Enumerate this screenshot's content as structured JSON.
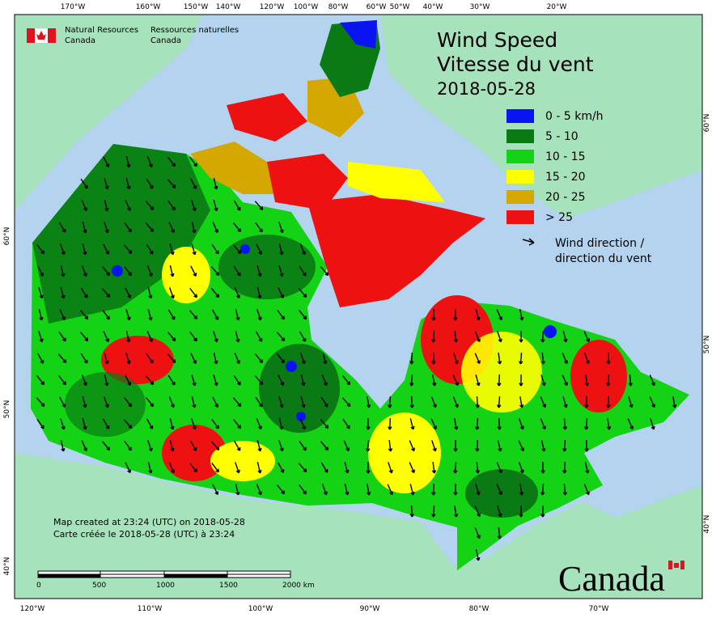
{
  "header": {
    "agency_en": [
      "Natural Resources",
      "Canada"
    ],
    "agency_fr": [
      "Ressources naturelles",
      "Canada"
    ]
  },
  "title": [
    "Wind Speed",
    "Vitesse du vent"
  ],
  "date": "2018-05-28",
  "legend": {
    "items": [
      {
        "label": "0 - 5 km/h",
        "color": "#0a14f0"
      },
      {
        "label": "5 - 10",
        "color": "#0a7a14"
      },
      {
        "label": "10 - 15",
        "color": "#14d214"
      },
      {
        "label": "15 - 20",
        "color": "#ffff00"
      },
      {
        "label": "20 - 25",
        "color": "#d4a800"
      },
      {
        "label": "> 25",
        "color": "#ee1111"
      }
    ],
    "direction": [
      "Wind direction /",
      "direction du vent"
    ]
  },
  "graticule": {
    "top": [
      "170°W",
      "160°W",
      "150°W",
      "140°W",
      "120°W",
      "100°W",
      "80°W",
      "60°W",
      "50°W",
      "40°W",
      "30°W",
      "20°W"
    ],
    "bottom": [
      "120°W",
      "110°W",
      "100°W",
      "90°W",
      "80°W",
      "70°W"
    ],
    "left": [
      "60°N",
      "50°N",
      "40°N"
    ],
    "right": [
      "60°N",
      "50°N",
      "40°N"
    ]
  },
  "footer": [
    "Map created at 23:24 (UTC) on 2018-05-28",
    "Carte créée le 2018-05-28 (UTC) à 23:24"
  ],
  "scale": [
    "0",
    "500",
    "1000",
    "1500",
    "2000 km"
  ],
  "wordmark": "Canada"
}
